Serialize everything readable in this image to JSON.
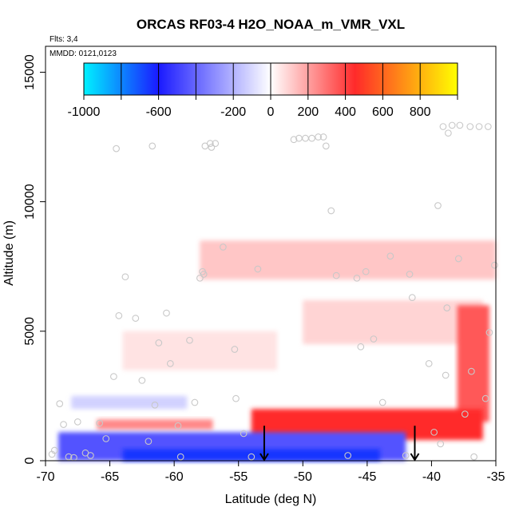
{
  "chart_data": {
    "type": "heatmap",
    "title": "ORCAS RF03-4 H2O_NOAA_m_VMR_VXL",
    "flights_label": "Flts: 3,4",
    "date_label": "MMDD: 0121,0123",
    "xlabel": "Latitude (deg N)",
    "ylabel": "Altitude (m)",
    "xlim": [
      -70,
      -35
    ],
    "ylim": [
      0,
      16000
    ],
    "x_ticks": [
      -70,
      -65,
      -60,
      -55,
      -50,
      -45,
      -40,
      -35
    ],
    "y_ticks": [
      0,
      5000,
      10000,
      15000
    ],
    "colorbar": {
      "range": [
        -1000,
        1000
      ],
      "ticks": [
        -1000,
        -600,
        -200,
        0,
        200,
        400,
        600,
        800
      ],
      "colors": {
        "cyan": "#00f2ff",
        "blue": "#1a1aff",
        "white": "#ffffff",
        "red": "#ff2a2a",
        "yellow": "#ffff00"
      }
    },
    "anomaly_regions": [
      {
        "name": "upper-layer",
        "x": [
          -58,
          -35
        ],
        "y": [
          7000,
          8500
        ],
        "value": 120
      },
      {
        "name": "mid-west-layer",
        "x": [
          -64,
          -52
        ],
        "y": [
          3500,
          5000
        ],
        "value": 60
      },
      {
        "name": "mid-east-layer",
        "x": [
          -50,
          -36
        ],
        "y": [
          4500,
          6200
        ],
        "value": 90
      },
      {
        "name": "east-column",
        "x": [
          -38,
          -35.5
        ],
        "y": [
          1500,
          6000
        ],
        "value": 350
      },
      {
        "name": "low-red-west",
        "x": [
          -66,
          -57
        ],
        "y": [
          1200,
          1600
        ],
        "value": 250
      },
      {
        "name": "low-red-east",
        "x": [
          -54,
          -36
        ],
        "y": [
          800,
          2000
        ],
        "value": 450
      },
      {
        "name": "low-blue-band",
        "x": [
          -69,
          -42
        ],
        "y": [
          0,
          1100
        ],
        "value": -450
      },
      {
        "name": "surface-blue-core",
        "x": [
          -64,
          -44
        ],
        "y": [
          0,
          450
        ],
        "value": -650
      },
      {
        "name": "blue-streak",
        "x": [
          -68,
          -59
        ],
        "y": [
          2000,
          2500
        ],
        "value": -120
      }
    ],
    "flight_points": [
      [
        -69.5,
        250
      ],
      [
        -69.3,
        400
      ],
      [
        -68.9,
        2200
      ],
      [
        -68.6,
        1400
      ],
      [
        -68.2,
        150
      ],
      [
        -67.8,
        120
      ],
      [
        -67.5,
        1500
      ],
      [
        -66.9,
        300
      ],
      [
        -66.5,
        200
      ],
      [
        -65.8,
        1450
      ],
      [
        -65.3,
        850
      ],
      [
        -64.7,
        3250
      ],
      [
        -64.5,
        12050
      ],
      [
        -64.3,
        5600
      ],
      [
        -63.8,
        7100
      ],
      [
        -63.0,
        5500
      ],
      [
        -62.5,
        3100
      ],
      [
        -62.0,
        750
      ],
      [
        -61.7,
        12150
      ],
      [
        -61.5,
        2150
      ],
      [
        -61.2,
        4550
      ],
      [
        -60.6,
        5700
      ],
      [
        -60.3,
        3750
      ],
      [
        -59.7,
        1350
      ],
      [
        -59.5,
        150
      ],
      [
        -58.8,
        4650
      ],
      [
        -58.4,
        2250
      ],
      [
        -58.0,
        7050
      ],
      [
        -57.8,
        7300
      ],
      [
        -57.7,
        7200
      ],
      [
        -57.6,
        12150
      ],
      [
        -57.2,
        12250
      ],
      [
        -57.1,
        12100
      ],
      [
        -56.8,
        12250
      ],
      [
        -56.2,
        8250
      ],
      [
        -55.3,
        4300
      ],
      [
        -55.2,
        2400
      ],
      [
        -54.6,
        1050
      ],
      [
        -54.0,
        150
      ],
      [
        -50.7,
        12400
      ],
      [
        -50.3,
        12450
      ],
      [
        -49.8,
        12450
      ],
      [
        -49.3,
        12450
      ],
      [
        -48.8,
        12500
      ],
      [
        -48.4,
        12500
      ],
      [
        -48.2,
        12150
      ],
      [
        -47.8,
        9650
      ],
      [
        -47.4,
        7150
      ],
      [
        -46.5,
        200
      ],
      [
        -45.8,
        7050
      ],
      [
        -45.5,
        4400
      ],
      [
        -45.1,
        7300
      ],
      [
        -44.5,
        4700
      ],
      [
        -43.8,
        2250
      ],
      [
        -43.2,
        7900
      ],
      [
        -42.0,
        200
      ],
      [
        -41.7,
        7200
      ],
      [
        -41.5,
        6300
      ],
      [
        -40.2,
        3750
      ],
      [
        -39.8,
        1100
      ],
      [
        -39.5,
        9850
      ],
      [
        -39.3,
        650
      ],
      [
        -39.1,
        12900
      ],
      [
        -38.8,
        5900
      ],
      [
        -38.7,
        12650
      ],
      [
        -38.4,
        12950
      ],
      [
        -37.9,
        7800
      ],
      [
        -37.8,
        12950
      ],
      [
        -37.0,
        12900
      ],
      [
        -36.3,
        12900
      ],
      [
        -35.6,
        12900
      ],
      [
        -35.8,
        2400
      ],
      [
        -35.5,
        4950
      ],
      [
        -35.1,
        7550
      ],
      [
        -36.9,
        3450
      ],
      [
        -37.4,
        1800
      ],
      [
        -36.7,
        150
      ],
      [
        -38.9,
        3300
      ],
      [
        -53.5,
        7400
      ]
    ],
    "arrows_x": [
      -53,
      -41.3
    ]
  }
}
